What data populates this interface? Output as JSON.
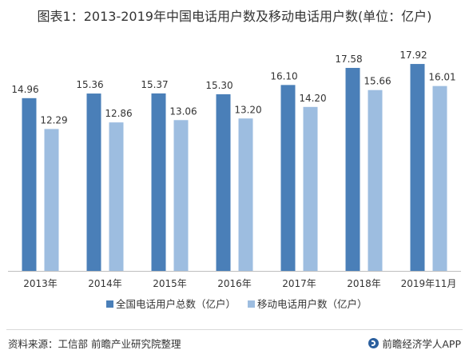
{
  "chart_data": {
    "type": "bar",
    "title": "图表1：2013-2019年中国电话用户数及移动电话用户数(单位：亿户)",
    "categories": [
      "2013年",
      "2014年",
      "2015年",
      "2016年",
      "2017年",
      "2018年",
      "2019年11月"
    ],
    "series": [
      {
        "name": "全国电话用户总数（亿户）",
        "color": "#4a7fb8",
        "values": [
          14.96,
          15.36,
          15.37,
          15.3,
          16.1,
          17.58,
          17.92
        ],
        "labels": [
          "14.96",
          "15.36",
          "15.37",
          "15.30",
          "16.10",
          "17.58",
          "17.92"
        ]
      },
      {
        "name": "移动电话用户数（亿户）",
        "color": "#9dbde0",
        "values": [
          12.29,
          12.86,
          13.06,
          13.2,
          14.2,
          15.66,
          16.01
        ],
        "labels": [
          "12.29",
          "12.86",
          "13.06",
          "13.20",
          "14.20",
          "15.66",
          "16.01"
        ]
      }
    ],
    "ylim": [
      0,
      20
    ],
    "grid": false,
    "legend": "bottom"
  },
  "footer": {
    "source": "资料来源：工信部 前瞻产业研究院整理",
    "brand": "前瞻经济学人APP"
  },
  "colors": {
    "axis": "#bfbfbf",
    "text": "#333333"
  }
}
